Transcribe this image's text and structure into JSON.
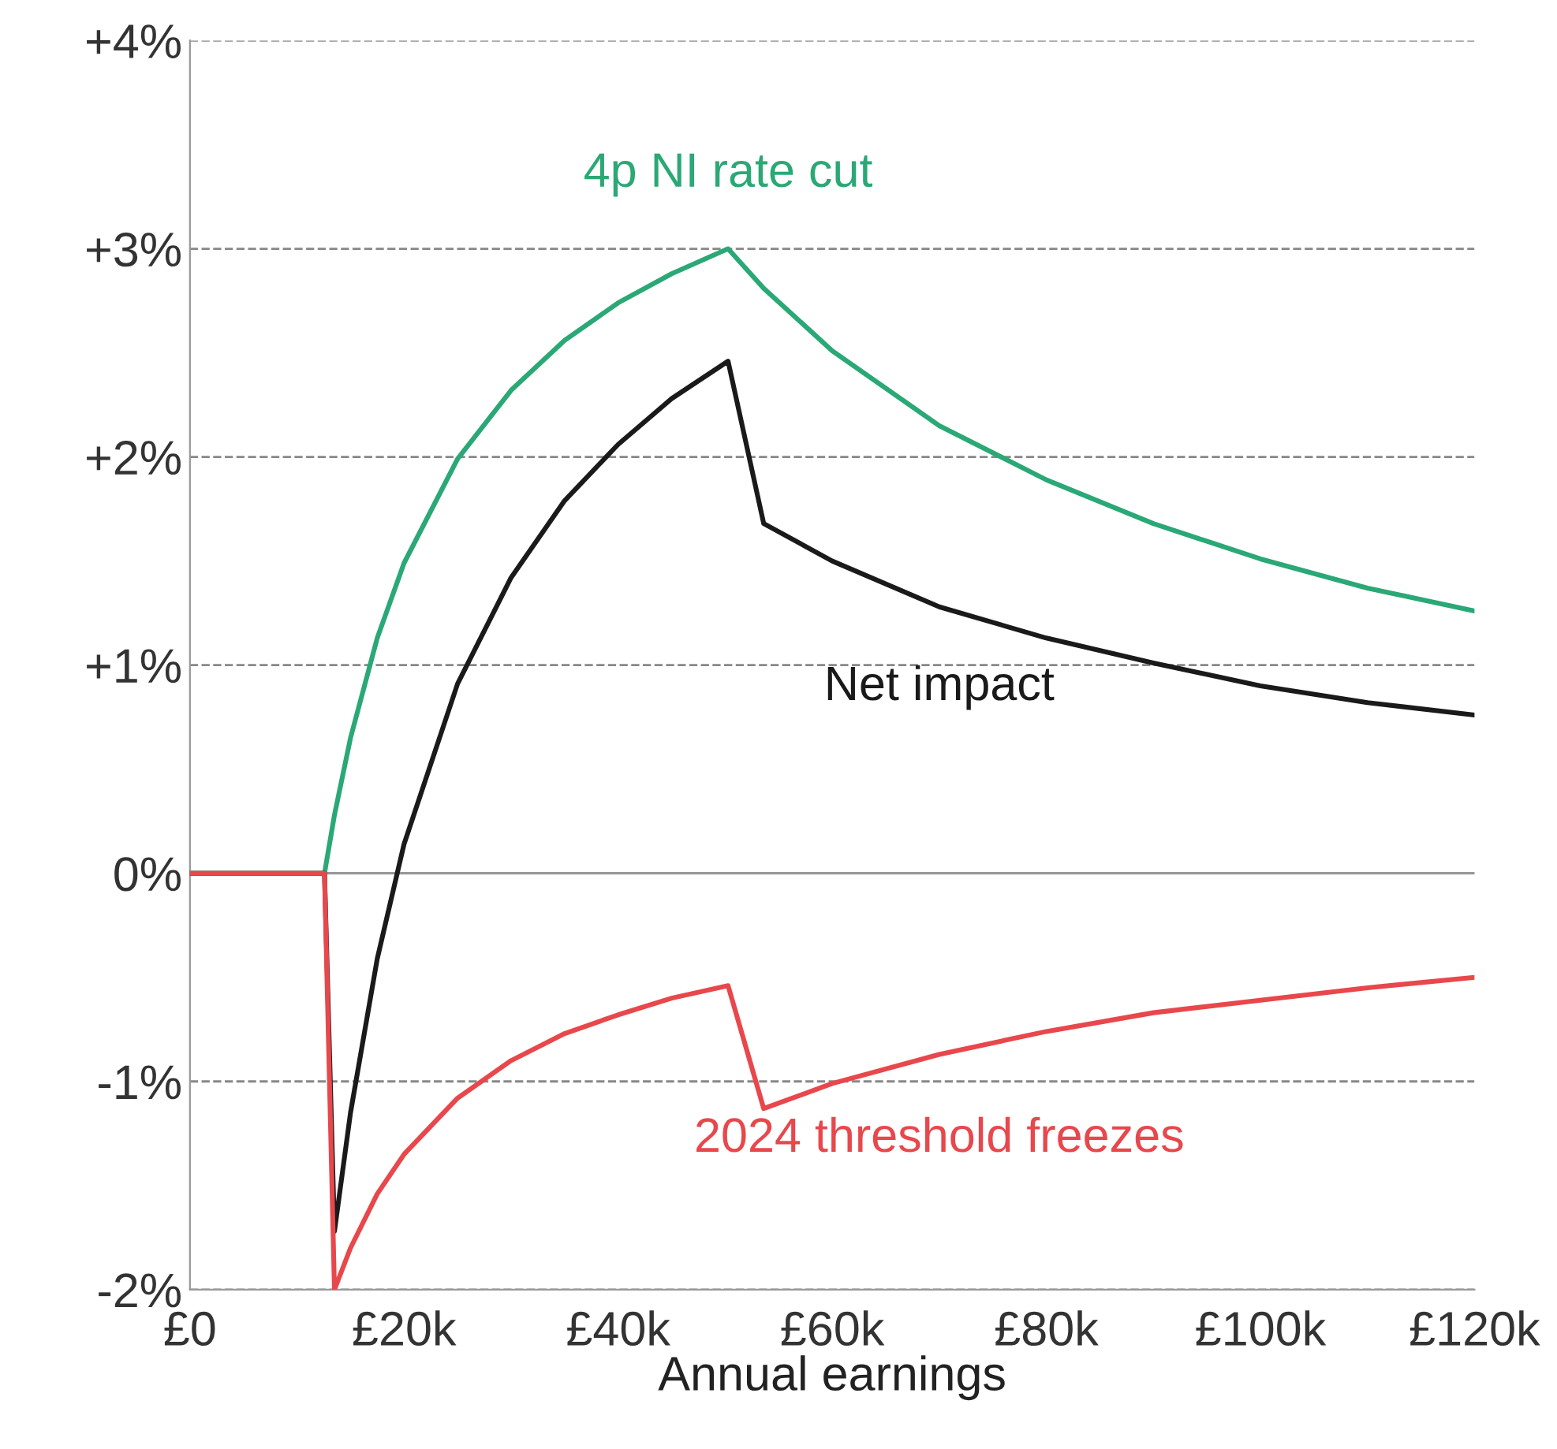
{
  "chart_data": {
    "type": "line",
    "xlabel": "Annual earnings",
    "x": [
      0,
      12.57,
      13.5,
      15,
      17.5,
      20,
      25,
      30,
      35,
      40,
      45,
      50.27,
      53.6,
      60,
      70,
      80,
      90,
      100,
      110,
      120
    ],
    "series": [
      {
        "name": "4p NI rate cut",
        "color": "#2aa876",
        "values": [
          0,
          0,
          0.28,
          0.65,
          1.13,
          1.49,
          1.99,
          2.32,
          2.56,
          2.74,
          2.88,
          3.0,
          2.81,
          2.51,
          2.15,
          1.89,
          1.68,
          1.51,
          1.37,
          1.26
        ]
      },
      {
        "name": "Net impact",
        "color": "#1a1a1a",
        "values": [
          0,
          0,
          -1.72,
          -1.15,
          -0.41,
          0.14,
          0.91,
          1.42,
          1.79,
          2.06,
          2.28,
          2.46,
          1.68,
          1.5,
          1.28,
          1.13,
          1.01,
          0.9,
          0.82,
          0.76
        ]
      },
      {
        "name": "2024 threshold freezes",
        "color": "#e8474c",
        "values": [
          0,
          0,
          -2.0,
          -1.8,
          -1.54,
          -1.35,
          -1.08,
          -0.9,
          -0.77,
          -0.68,
          -0.6,
          -0.54,
          -1.13,
          -1.01,
          -0.87,
          -0.76,
          -0.67,
          -0.61,
          -0.55,
          -0.5
        ]
      }
    ],
    "xlim": [
      0,
      120
    ],
    "xticks": [
      {
        "value": 0,
        "label": "£0"
      },
      {
        "value": 20,
        "label": "£20k"
      },
      {
        "value": 40,
        "label": "£40k"
      },
      {
        "value": 60,
        "label": "£60k"
      },
      {
        "value": 80,
        "label": "£80k"
      },
      {
        "value": 100,
        "label": "£100k"
      },
      {
        "value": 120,
        "label": "£120k"
      }
    ],
    "ylim": [
      -2,
      4
    ],
    "yticks": [
      {
        "value": -2,
        "label": "-2%"
      },
      {
        "value": -1,
        "label": "-1%"
      },
      {
        "value": 0,
        "label": "0%"
      },
      {
        "value": 1,
        "label": "+1%"
      },
      {
        "value": 2,
        "label": "+2%"
      },
      {
        "value": 3,
        "label": "+3%"
      },
      {
        "value": 4,
        "label": "+4%"
      }
    ],
    "grid": "y",
    "legend": false,
    "marker": "none",
    "line_style": "solid",
    "ref_lines": [
      {
        "axis": "y",
        "value": 0,
        "color": "#999999",
        "line_style": "solid"
      }
    ]
  }
}
